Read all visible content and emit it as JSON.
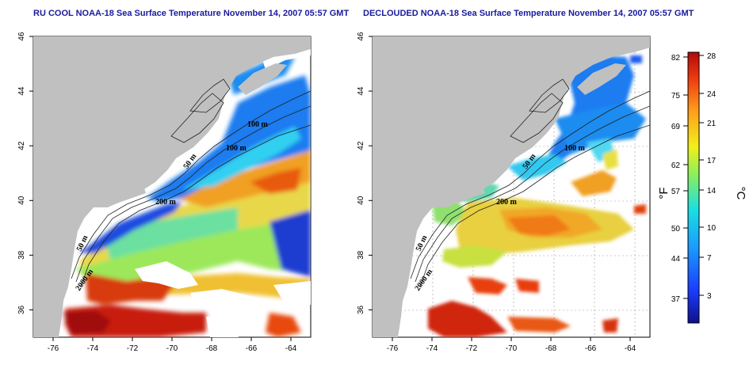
{
  "maps": [
    {
      "title": "RU COOL NOAA-18 Sea Surface Temperature November 14, 2007 05:57 GMT",
      "contour_labels": [
        "100 m",
        "100 m",
        "50 m",
        "200 m",
        "50 m",
        "2000 m"
      ]
    },
    {
      "title": "DECLOUDED NOAA-18 Sea Surface Temperature November 14, 2007 05:57 GMT",
      "contour_labels": [
        "100 m",
        "50 m",
        "200 m",
        "50 m",
        "2000 m"
      ]
    }
  ],
  "axes": {
    "lon_ticks": [
      "-76",
      "-74",
      "-72",
      "-70",
      "-68",
      "-66",
      "-64"
    ],
    "lat_ticks": [
      "46",
      "44",
      "42",
      "40",
      "38",
      "36"
    ]
  },
  "colorbar": {
    "fahrenheit_ticks": [
      "82",
      "75",
      "69",
      "62",
      "57",
      "50",
      "44",
      "37"
    ],
    "celsius_ticks": [
      "28",
      "24",
      "21",
      "17",
      "14",
      "10",
      "7",
      "3"
    ],
    "fahrenheit_unit": "°F",
    "celsius_unit": "°C"
  },
  "colors": {
    "land": "#c0c0c0",
    "title": "#1a1aa0",
    "warm": "#cc1a00",
    "cold": "#0a1a8c"
  }
}
